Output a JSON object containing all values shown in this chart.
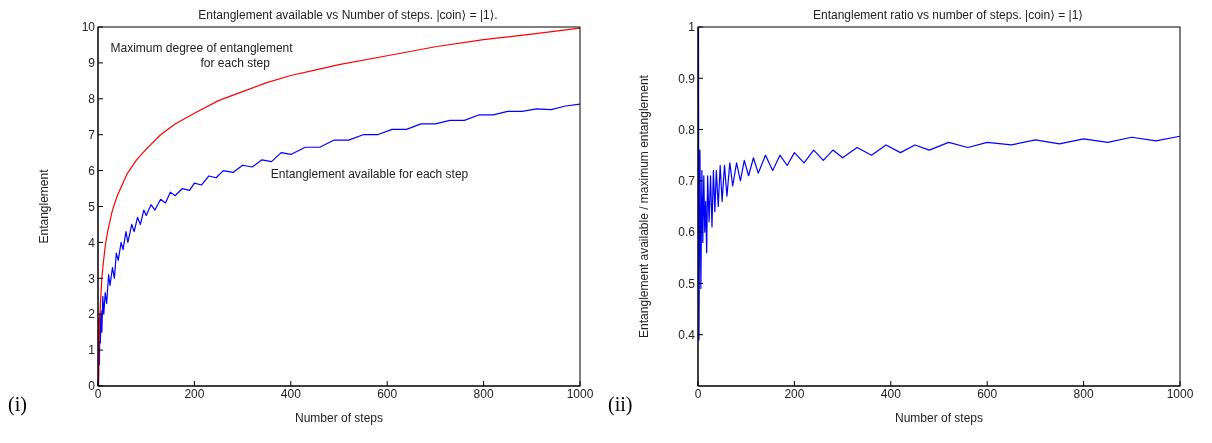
{
  "chart_data": [
    {
      "type": "line",
      "title": "Entanglement available vs Number of steps. |coin⟩ = |1⟩.",
      "xlabel": "Number of steps",
      "ylabel": "Entanglement",
      "xlim": [
        0,
        1000
      ],
      "xticks": [
        0,
        200,
        400,
        600,
        800,
        1000
      ],
      "ylim": [
        0,
        10
      ],
      "yticks": [
        0,
        1,
        2,
        3,
        4,
        5,
        6,
        7,
        8,
        9,
        10
      ],
      "marker": "none",
      "annotations": [
        "(i)"
      ],
      "series": [
        {
          "name": "Maximum degree of entanglement for each step",
          "color": "#ff0000",
          "x": [
            1,
            2,
            3,
            5,
            8,
            10,
            15,
            20,
            30,
            40,
            60,
            80,
            100,
            130,
            160,
            200,
            250,
            300,
            350,
            400,
            450,
            500,
            600,
            700,
            800,
            900,
            1000
          ],
          "values": [
            0,
            1,
            1.6,
            2.3,
            3.0,
            3.3,
            3.9,
            4.3,
            4.9,
            5.3,
            5.9,
            6.3,
            6.6,
            7.0,
            7.3,
            7.6,
            7.95,
            8.2,
            8.45,
            8.65,
            8.8,
            8.95,
            9.2,
            9.45,
            9.65,
            9.8,
            9.97
          ]
        },
        {
          "name": "Entanglement available for each step",
          "color": "#0000ff",
          "x": [
            1,
            2,
            3,
            4,
            5,
            6,
            8,
            10,
            12,
            15,
            18,
            22,
            25,
            30,
            34,
            38,
            42,
            48,
            52,
            58,
            62,
            70,
            75,
            82,
            88,
            95,
            100,
            110,
            118,
            130,
            140,
            150,
            160,
            175,
            190,
            200,
            215,
            230,
            245,
            260,
            280,
            300,
            320,
            340,
            360,
            380,
            400,
            430,
            460,
            490,
            520,
            550,
            580,
            610,
            640,
            670,
            700,
            730,
            760,
            790,
            820,
            850,
            880,
            910,
            940,
            970,
            1000
          ],
          "values": [
            0,
            1.9,
            0.6,
            2.0,
            1.2,
            2.1,
            1.5,
            2.5,
            2.0,
            2.6,
            2.3,
            3.1,
            2.8,
            3.3,
            3.0,
            3.7,
            3.5,
            4.0,
            3.8,
            4.3,
            4.0,
            4.5,
            4.3,
            4.7,
            4.5,
            4.9,
            4.75,
            5.05,
            4.9,
            5.2,
            5.1,
            5.4,
            5.3,
            5.5,
            5.45,
            5.65,
            5.6,
            5.85,
            5.8,
            6.0,
            5.95,
            6.15,
            6.1,
            6.3,
            6.25,
            6.5,
            6.45,
            6.65,
            6.65,
            6.85,
            6.85,
            7.0,
            7.0,
            7.15,
            7.15,
            7.3,
            7.3,
            7.4,
            7.4,
            7.55,
            7.55,
            7.65,
            7.65,
            7.72,
            7.7,
            7.8,
            7.85
          ]
        }
      ]
    },
    {
      "type": "line",
      "title": "Entanglement ratio vs number of steps. |coin⟩ = |1⟩",
      "xlabel": "Number of steps",
      "ylabel": "Entanglement available / maximum entanglement",
      "xlim": [
        0,
        1000
      ],
      "xticks": [
        0,
        200,
        400,
        600,
        800,
        1000
      ],
      "ylim": [
        0.3,
        1
      ],
      "yticks": [
        0.4,
        0.5,
        0.6,
        0.7,
        0.8,
        0.9,
        1
      ],
      "marker": "none",
      "annotations": [
        "(ii)"
      ],
      "series": [
        {
          "color": "#0000ff",
          "x": [
            1,
            2,
            4,
            6,
            8,
            10,
            12,
            14,
            16,
            18,
            20,
            23,
            26,
            29,
            32,
            35,
            38,
            42,
            46,
            50,
            55,
            60,
            66,
            72,
            80,
            88,
            96,
            105,
            115,
            125,
            140,
            155,
            170,
            185,
            200,
            220,
            240,
            260,
            280,
            300,
            330,
            360,
            390,
            420,
            450,
            480,
            520,
            560,
            600,
            650,
            700,
            750,
            800,
            850,
            900,
            950,
            1000
          ],
          "values": [
            1,
            0.39,
            0.76,
            0.49,
            0.72,
            0.58,
            0.71,
            0.6,
            0.66,
            0.56,
            0.71,
            0.62,
            0.71,
            0.61,
            0.72,
            0.64,
            0.72,
            0.65,
            0.73,
            0.66,
            0.73,
            0.67,
            0.735,
            0.69,
            0.735,
            0.7,
            0.74,
            0.71,
            0.745,
            0.715,
            0.75,
            0.72,
            0.75,
            0.73,
            0.755,
            0.735,
            0.76,
            0.74,
            0.76,
            0.745,
            0.765,
            0.75,
            0.77,
            0.755,
            0.77,
            0.76,
            0.775,
            0.765,
            0.775,
            0.77,
            0.78,
            0.772,
            0.782,
            0.775,
            0.785,
            0.778,
            0.787
          ]
        }
      ]
    }
  ]
}
